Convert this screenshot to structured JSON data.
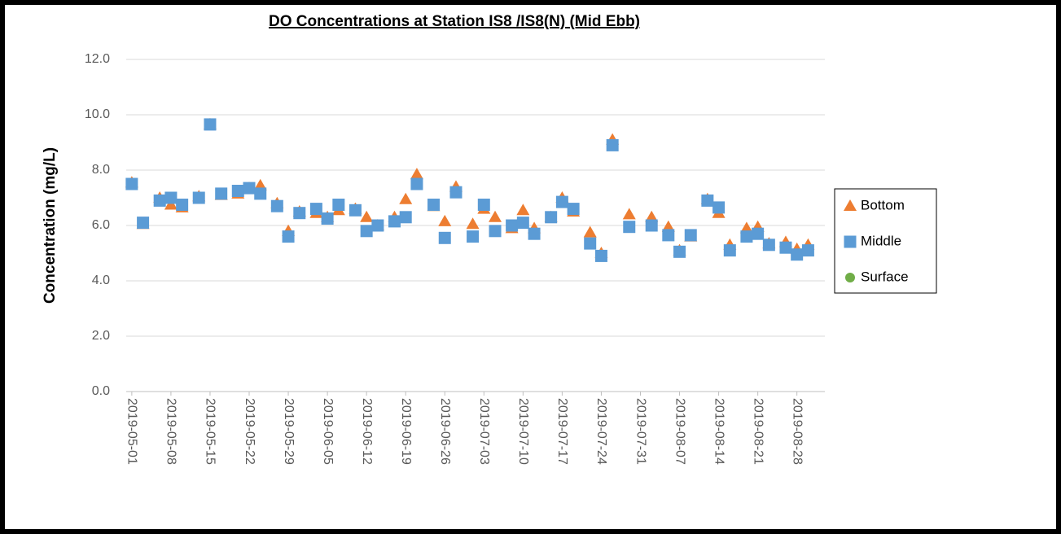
{
  "chart_data": {
    "type": "scatter",
    "title": "DO Concentrations at Station IS8 /IS8(N) (Mid Ebb)",
    "y_label": "Concentration (mg/L)",
    "x": [
      "2019-05-01",
      "2019-05-03",
      "2019-05-06",
      "2019-05-08",
      "2019-05-10",
      "2019-05-13",
      "2019-05-15",
      "2019-05-17",
      "2019-05-20",
      "2019-05-22",
      "2019-05-24",
      "2019-05-27",
      "2019-05-29",
      "2019-05-31",
      "2019-06-03",
      "2019-06-05",
      "2019-06-07",
      "2019-06-10",
      "2019-06-12",
      "2019-06-14",
      "2019-06-17",
      "2019-06-19",
      "2019-06-21",
      "2019-06-24",
      "2019-06-26",
      "2019-06-28",
      "2019-07-01",
      "2019-07-03",
      "2019-07-05",
      "2019-07-08",
      "2019-07-10",
      "2019-07-12",
      "2019-07-15",
      "2019-07-17",
      "2019-07-19",
      "2019-07-22",
      "2019-07-24",
      "2019-07-26",
      "2019-07-29",
      "2019-08-02",
      "2019-08-05",
      "2019-08-07",
      "2019-08-09",
      "2019-08-12",
      "2019-08-14",
      "2019-08-16",
      "2019-08-19",
      "2019-08-21",
      "2019-08-23",
      "2019-08-26",
      "2019-08-28",
      "2019-08-30"
    ],
    "series": [
      {
        "name": "Bottom",
        "color": "#ed7d31",
        "marker": "triangle",
        "values": [
          7.55,
          6.05,
          7.0,
          6.75,
          6.65,
          7.05,
          9.65,
          7.1,
          7.15,
          7.35,
          7.45,
          6.8,
          5.8,
          6.5,
          6.45,
          6.3,
          6.55,
          6.6,
          6.3,
          6.0,
          6.3,
          6.95,
          7.85,
          6.7,
          6.15,
          7.4,
          6.05,
          6.6,
          6.3,
          5.9,
          6.55,
          5.9,
          6.3,
          7.0,
          6.5,
          5.75,
          5.0,
          9.1,
          6.4,
          6.3,
          5.95,
          5.1,
          5.6,
          6.95,
          6.45,
          5.3,
          5.9,
          5.95,
          5.35,
          5.4,
          5.15,
          5.3
        ]
      },
      {
        "name": "Middle",
        "color": "#5b9bd5",
        "marker": "square",
        "values": [
          7.5,
          6.1,
          6.9,
          7.0,
          6.75,
          7.0,
          9.65,
          7.15,
          7.25,
          7.35,
          7.15,
          6.7,
          5.6,
          6.45,
          6.6,
          6.25,
          6.75,
          6.55,
          5.8,
          6.0,
          6.15,
          6.3,
          7.5,
          6.75,
          5.55,
          7.2,
          5.6,
          6.75,
          5.8,
          6.0,
          6.1,
          5.7,
          6.3,
          6.85,
          6.6,
          5.35,
          4.9,
          8.9,
          5.95,
          6.0,
          5.65,
          5.05,
          5.65,
          6.9,
          6.65,
          5.1,
          5.6,
          5.7,
          5.3,
          5.2,
          4.95,
          5.1
        ]
      },
      {
        "name": "Surface",
        "color": "#70ad47",
        "marker": "circle",
        "values": [
          null,
          null,
          null,
          null,
          null,
          null,
          null,
          null,
          null,
          null,
          null,
          null,
          null,
          null,
          null,
          null,
          null,
          null,
          null,
          null,
          null,
          null,
          null,
          null,
          null,
          null,
          null,
          null,
          null,
          null,
          null,
          null,
          null,
          null,
          null,
          null,
          null,
          null,
          null,
          null,
          null,
          null,
          null,
          null,
          null,
          null,
          null,
          null,
          null,
          null,
          null,
          null
        ]
      }
    ],
    "xlim": [
      "2019-04-30",
      "2019-09-02"
    ],
    "xticks": [
      "2019-05-01",
      "2019-05-08",
      "2019-05-15",
      "2019-05-22",
      "2019-05-29",
      "2019-06-05",
      "2019-06-12",
      "2019-06-19",
      "2019-06-26",
      "2019-07-03",
      "2019-07-10",
      "2019-07-17",
      "2019-07-24",
      "2019-07-31",
      "2019-08-07",
      "2019-08-14",
      "2019-08-21",
      "2019-08-28"
    ],
    "ylim": [
      0,
      12
    ],
    "yticks": [
      {
        "value": 0,
        "label": "0.0"
      },
      {
        "value": 2,
        "label": "2.0"
      },
      {
        "value": 4,
        "label": "4.0"
      },
      {
        "value": 6,
        "label": "6.0"
      },
      {
        "value": 8,
        "label": "8.0"
      },
      {
        "value": 10,
        "label": "10.0"
      },
      {
        "value": 12,
        "label": "12.0"
      }
    ],
    "grid": true,
    "legend": "right"
  }
}
